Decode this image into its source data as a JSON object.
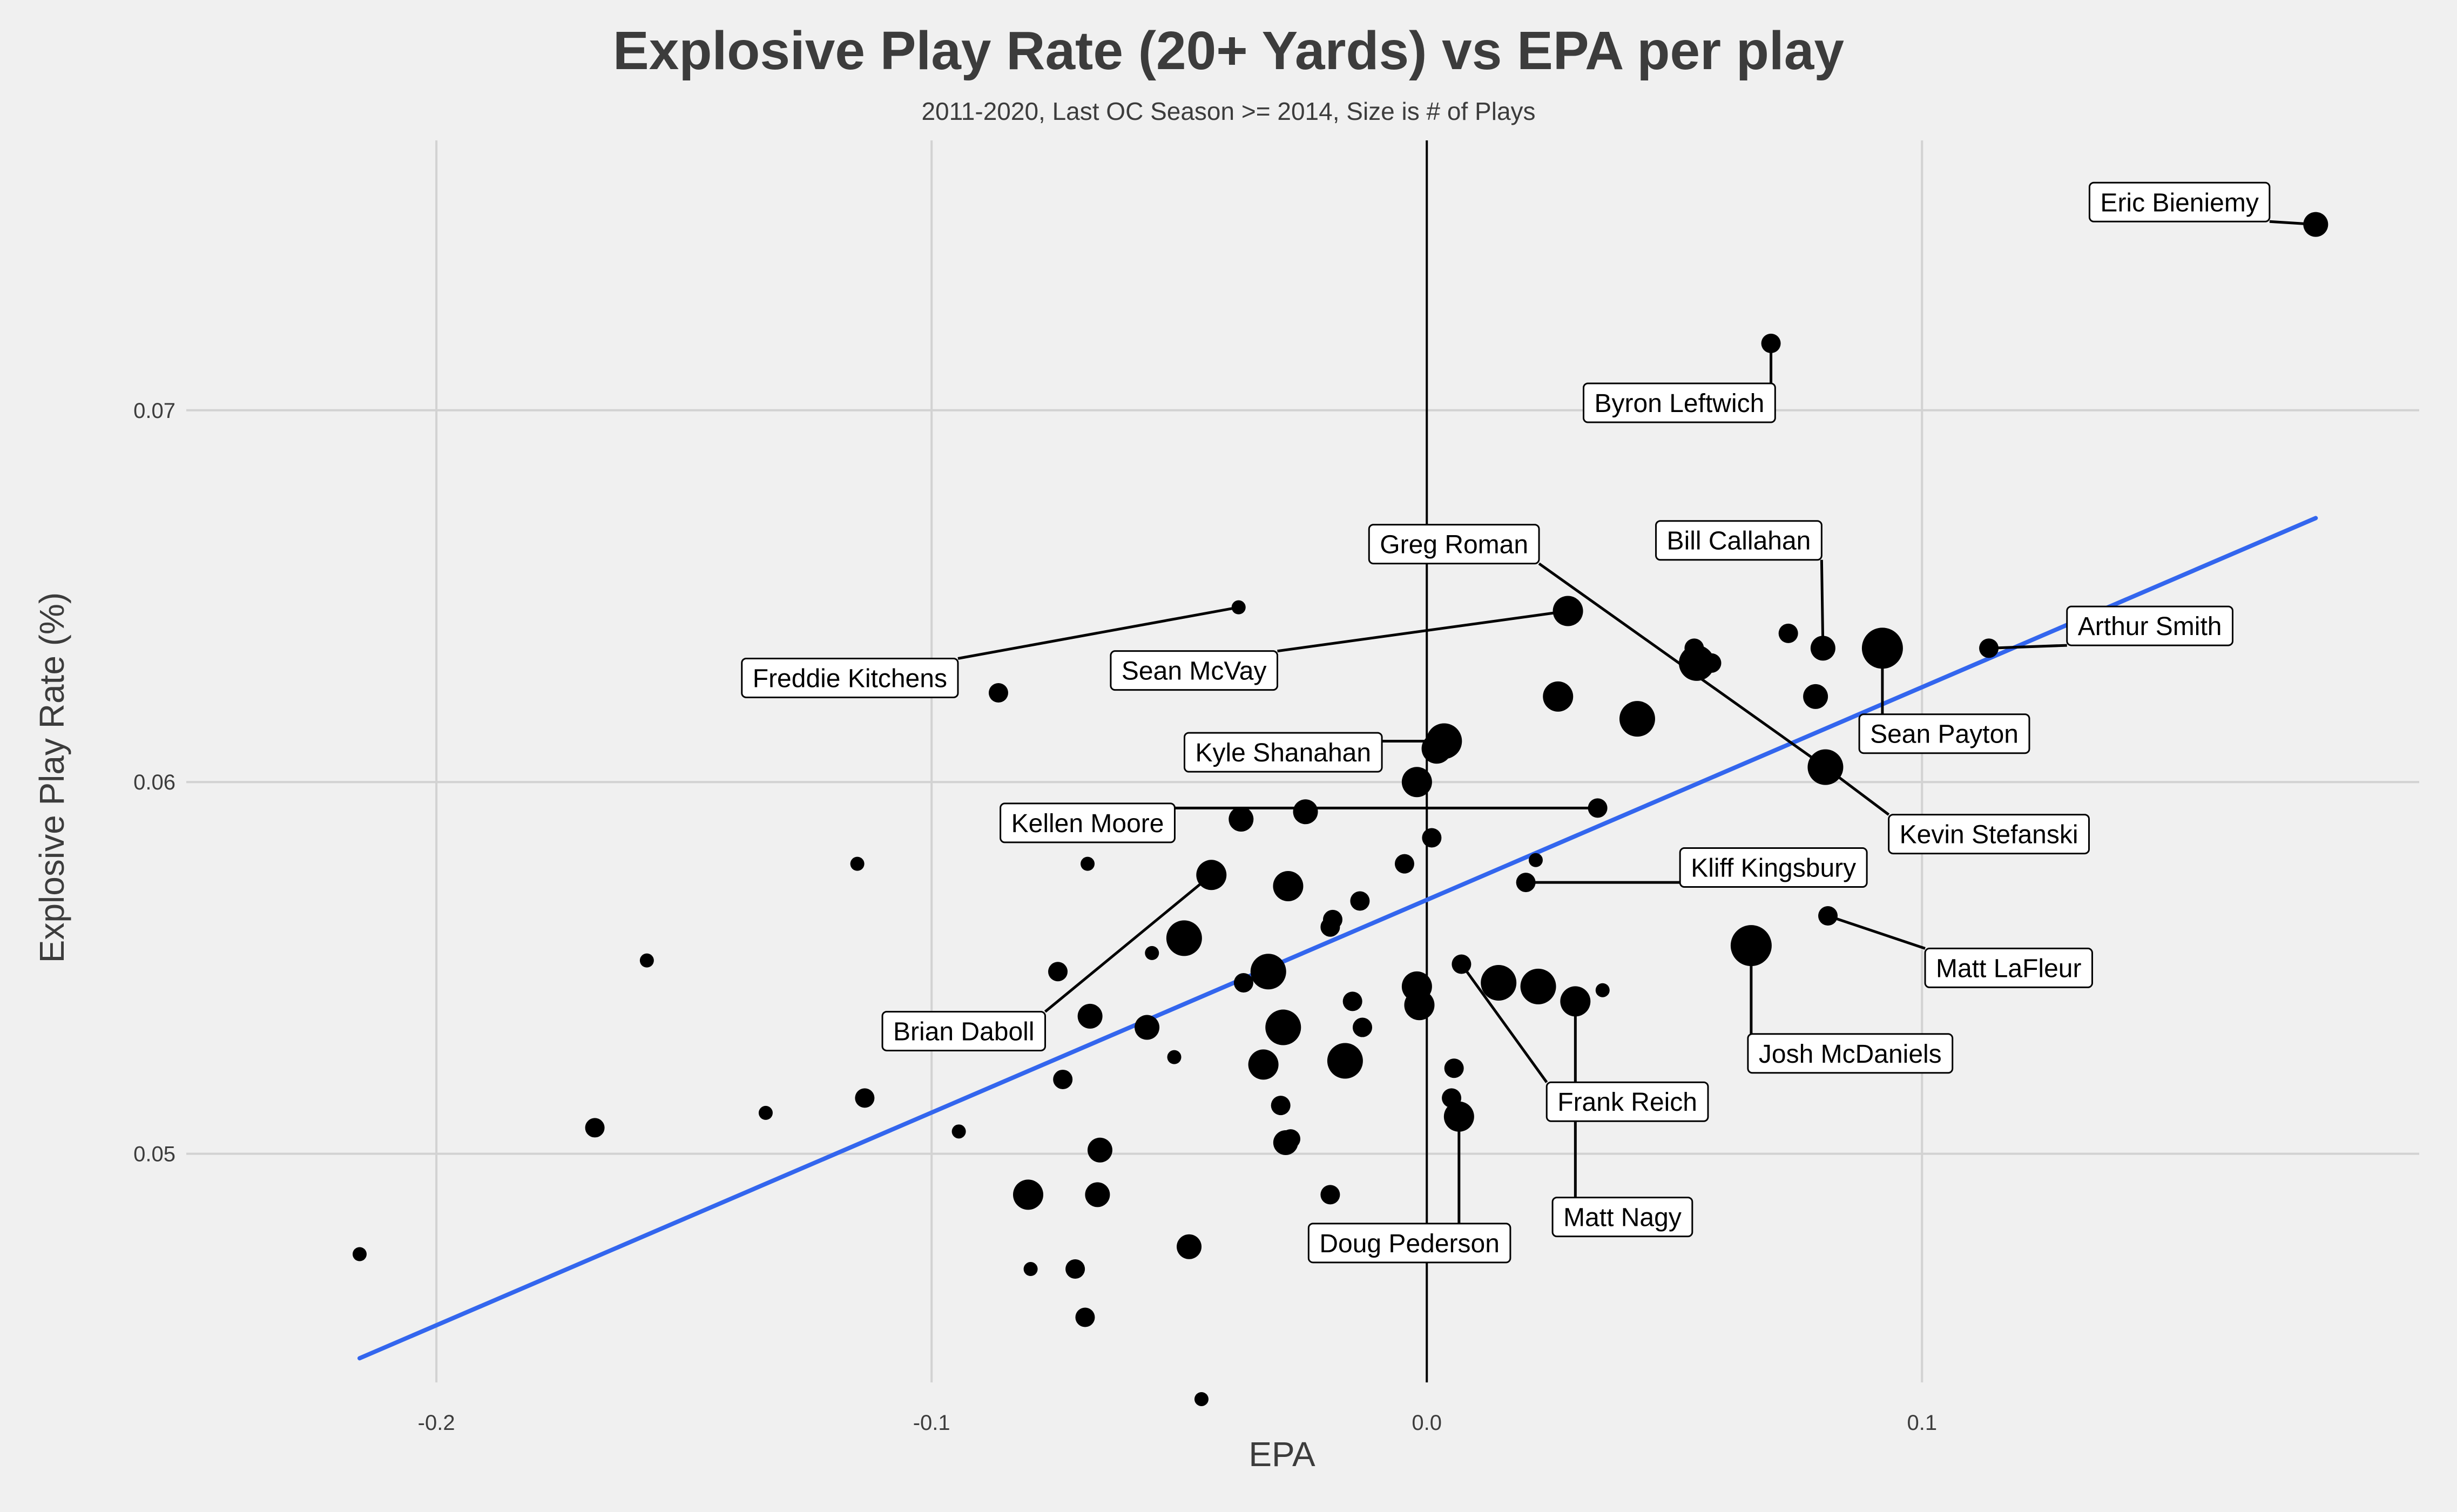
{
  "chart_data": {
    "type": "scatter",
    "title": "Explosive Play Rate (20+ Yards) vs EPA per play",
    "subtitle": "2011-2020, Last OC Season >= 2014, Size is # of Plays",
    "xlabel": "EPA",
    "ylabel": "Explosive Play Rate (%)",
    "xlim": [
      -0.2505,
      0.2004
    ],
    "ylim": [
      0.04385,
      0.07726
    ],
    "x_ticks": [
      -0.2,
      -0.1,
      0.0,
      0.1
    ],
    "x_tick_labels": [
      "-0.2",
      "-0.1",
      "0.0",
      "0.1"
    ],
    "y_ticks": [
      0.05,
      0.06,
      0.07
    ],
    "y_tick_labels": [
      "0.05",
      "0.06",
      "0.07"
    ],
    "grid": true,
    "zero_line": true,
    "colors": {
      "background": "#f0f0f0",
      "grid": "#d2d2d2",
      "points": "#000000",
      "trend": "#3366ee",
      "text": "#3c3c3c"
    },
    "trend_line": {
      "x_start": -0.2155,
      "y_start": 0.0445,
      "x_end": 0.1795,
      "y_end": 0.0671
    },
    "points": [
      {
        "x": 0.1795,
        "y": 0.075,
        "size": 3
      },
      {
        "x": 0.0695,
        "y": 0.0718,
        "size": 2
      },
      {
        "x": 0.0285,
        "y": 0.0646,
        "size": 4
      },
      {
        "x": -0.038,
        "y": 0.0647,
        "size": 1
      },
      {
        "x": -0.0865,
        "y": 0.0624,
        "size": 2
      },
      {
        "x": 0.054,
        "y": 0.0636,
        "size": 2
      },
      {
        "x": 0.0545,
        "y": 0.0632,
        "size": 5
      },
      {
        "x": 0.0575,
        "y": 0.0632,
        "size": 2
      },
      {
        "x": 0.073,
        "y": 0.064,
        "size": 2
      },
      {
        "x": 0.08,
        "y": 0.0636,
        "size": 3
      },
      {
        "x": 0.092,
        "y": 0.0636,
        "size": 6
      },
      {
        "x": 0.1135,
        "y": 0.0636,
        "size": 2
      },
      {
        "x": 0.0265,
        "y": 0.0623,
        "size": 4
      },
      {
        "x": 0.0785,
        "y": 0.0623,
        "size": 3
      },
      {
        "x": 0.0425,
        "y": 0.0617,
        "size": 5
      },
      {
        "x": 0.0035,
        "y": 0.0611,
        "size": 5
      },
      {
        "x": 0.002,
        "y": 0.0609,
        "size": 4
      },
      {
        "x": -0.002,
        "y": 0.06,
        "size": 4
      },
      {
        "x": 0.0805,
        "y": 0.0604,
        "size": 5
      },
      {
        "x": -0.0245,
        "y": 0.0592,
        "size": 3
      },
      {
        "x": 0.0345,
        "y": 0.0593,
        "size": 2
      },
      {
        "x": -0.0375,
        "y": 0.059,
        "size": 3
      },
      {
        "x": 0.001,
        "y": 0.0585,
        "size": 2
      },
      {
        "x": -0.115,
        "y": 0.0578,
        "size": 1
      },
      {
        "x": -0.0685,
        "y": 0.0578,
        "size": 1
      },
      {
        "x": -0.0045,
        "y": 0.0578,
        "size": 2
      },
      {
        "x": 0.022,
        "y": 0.0579,
        "size": 1
      },
      {
        "x": 0.02,
        "y": 0.0573,
        "size": 2
      },
      {
        "x": -0.0435,
        "y": 0.0575,
        "size": 4
      },
      {
        "x": -0.028,
        "y": 0.0572,
        "size": 4
      },
      {
        "x": -0.0135,
        "y": 0.0568,
        "size": 2
      },
      {
        "x": -0.019,
        "y": 0.0563,
        "size": 2
      },
      {
        "x": -0.0195,
        "y": 0.0561,
        "size": 2
      },
      {
        "x": 0.081,
        "y": 0.0564,
        "size": 2
      },
      {
        "x": -0.049,
        "y": 0.0558,
        "size": 5
      },
      {
        "x": 0.0655,
        "y": 0.0556,
        "size": 6
      },
      {
        "x": -0.0555,
        "y": 0.0554,
        "size": 1
      },
      {
        "x": -0.1575,
        "y": 0.0552,
        "size": 1
      },
      {
        "x": 0.007,
        "y": 0.0551,
        "size": 2
      },
      {
        "x": -0.0745,
        "y": 0.0549,
        "size": 2
      },
      {
        "x": -0.032,
        "y": 0.0549,
        "size": 5
      },
      {
        "x": -0.037,
        "y": 0.0546,
        "size": 2
      },
      {
        "x": -0.002,
        "y": 0.0545,
        "size": 4
      },
      {
        "x": 0.0145,
        "y": 0.0546,
        "size": 5
      },
      {
        "x": 0.0225,
        "y": 0.0545,
        "size": 5
      },
      {
        "x": 0.0355,
        "y": 0.0544,
        "size": 1
      },
      {
        "x": -0.015,
        "y": 0.0541,
        "size": 2
      },
      {
        "x": -0.0015,
        "y": 0.054,
        "size": 4
      },
      {
        "x": 0.03,
        "y": 0.0541,
        "size": 4
      },
      {
        "x": -0.068,
        "y": 0.0537,
        "size": 3
      },
      {
        "x": -0.0565,
        "y": 0.0534,
        "size": 3
      },
      {
        "x": -0.029,
        "y": 0.0534,
        "size": 5
      },
      {
        "x": -0.013,
        "y": 0.0534,
        "size": 2
      },
      {
        "x": -0.051,
        "y": 0.0526,
        "size": 1
      },
      {
        "x": -0.033,
        "y": 0.0524,
        "size": 4
      },
      {
        "x": -0.0165,
        "y": 0.0525,
        "size": 5
      },
      {
        "x": 0.0055,
        "y": 0.0523,
        "size": 2
      },
      {
        "x": -0.0735,
        "y": 0.052,
        "size": 2
      },
      {
        "x": -0.1135,
        "y": 0.0515,
        "size": 2
      },
      {
        "x": -0.1335,
        "y": 0.0511,
        "size": 1
      },
      {
        "x": -0.0295,
        "y": 0.0513,
        "size": 2
      },
      {
        "x": 0.005,
        "y": 0.0515,
        "size": 2
      },
      {
        "x": 0.0065,
        "y": 0.051,
        "size": 4
      },
      {
        "x": -0.168,
        "y": 0.0507,
        "size": 2
      },
      {
        "x": -0.0945,
        "y": 0.0506,
        "size": 1
      },
      {
        "x": -0.0275,
        "y": 0.0504,
        "size": 2
      },
      {
        "x": -0.0285,
        "y": 0.0503,
        "size": 3
      },
      {
        "x": -0.066,
        "y": 0.0501,
        "size": 3
      },
      {
        "x": -0.0805,
        "y": 0.0489,
        "size": 4
      },
      {
        "x": -0.0665,
        "y": 0.0489,
        "size": 3
      },
      {
        "x": -0.0195,
        "y": 0.0489,
        "size": 2
      },
      {
        "x": -0.048,
        "y": 0.0475,
        "size": 3
      },
      {
        "x": -0.2155,
        "y": 0.0473,
        "size": 1
      },
      {
        "x": -0.08,
        "y": 0.0469,
        "size": 1
      },
      {
        "x": -0.071,
        "y": 0.0469,
        "size": 2
      },
      {
        "x": -0.069,
        "y": 0.0456,
        "size": 2
      },
      {
        "x": -0.0455,
        "y": 0.0434,
        "size": 1
      }
    ],
    "labels": [
      {
        "name": "Eric Bieniemy",
        "px": 0.1795,
        "py": 0.075,
        "lx": 0.152,
        "ly": 0.0756
      },
      {
        "name": "Byron Leftwich",
        "px": 0.0695,
        "py": 0.0718,
        "lx": 0.051,
        "ly": 0.0702
      },
      {
        "name": "Greg Roman",
        "px": 0.0805,
        "py": 0.0604,
        "lx": 0.0055,
        "ly": 0.0664
      },
      {
        "name": "Bill Callahan",
        "px": 0.08,
        "py": 0.0636,
        "lx": 0.063,
        "ly": 0.0665
      },
      {
        "name": "Arthur Smith",
        "px": 0.1135,
        "py": 0.0636,
        "lx": 0.146,
        "ly": 0.0642
      },
      {
        "name": "Freddie Kitchens",
        "px": -0.038,
        "py": 0.0647,
        "lx": -0.1165,
        "ly": 0.0628
      },
      {
        "name": "Sean McVay",
        "px": 0.0285,
        "py": 0.0646,
        "lx": -0.047,
        "ly": 0.063
      },
      {
        "name": "Sean Payton",
        "px": 0.092,
        "py": 0.0636,
        "lx": 0.1045,
        "ly": 0.0613
      },
      {
        "name": "Kyle Shanahan",
        "px": 0.0035,
        "py": 0.0611,
        "lx": -0.029,
        "ly": 0.0608
      },
      {
        "name": "Kevin Stefanski",
        "px": 0.0805,
        "py": 0.0604,
        "lx": 0.1135,
        "ly": 0.0586
      },
      {
        "name": "Kellen Moore",
        "px": 0.0345,
        "py": 0.0593,
        "lx": -0.0685,
        "ly": 0.0589
      },
      {
        "name": "Kliff Kingsbury",
        "px": 0.02,
        "py": 0.0573,
        "lx": 0.07,
        "ly": 0.0577
      },
      {
        "name": "Matt LaFleur",
        "px": 0.081,
        "py": 0.0564,
        "lx": 0.1175,
        "ly": 0.055
      },
      {
        "name": "Brian Daboll",
        "px": -0.0435,
        "py": 0.0575,
        "lx": -0.0935,
        "ly": 0.0533
      },
      {
        "name": "Josh McDaniels",
        "px": 0.0655,
        "py": 0.0556,
        "lx": 0.0855,
        "ly": 0.0527
      },
      {
        "name": "Frank Reich",
        "px": 0.007,
        "py": 0.0551,
        "lx": 0.0405,
        "ly": 0.0514
      },
      {
        "name": "Matt Nagy",
        "px": 0.03,
        "py": 0.0541,
        "lx": 0.0395,
        "ly": 0.0483
      },
      {
        "name": "Doug Pederson",
        "px": 0.0065,
        "py": 0.051,
        "lx": -0.0035,
        "ly": 0.0476
      }
    ]
  }
}
